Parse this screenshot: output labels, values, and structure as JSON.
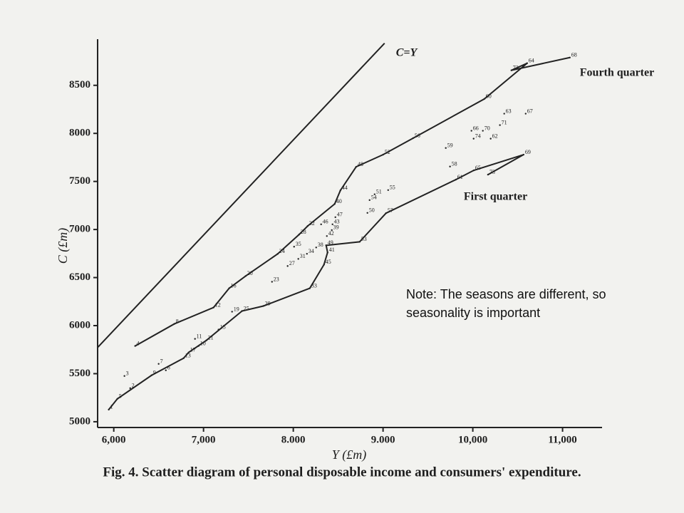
{
  "chart_data": {
    "type": "scatter",
    "caption": "Fig. 4. Scatter diagram of personal disposable income and consumers' expenditure.",
    "x_label": "Y (£m)",
    "y_label": "C (£m)",
    "xlim": [
      5820,
      11440
    ],
    "ylim": [
      4940,
      8980
    ],
    "xticks": [
      {
        "value": 6000,
        "label": "6,000"
      },
      {
        "value": 7000,
        "label": "7,000"
      },
      {
        "value": 8000,
        "label": "8.000"
      },
      {
        "value": 9000,
        "label": "9.000"
      },
      {
        "value": 10000,
        "label": "10,000"
      },
      {
        "value": 11000,
        "label": "11,000"
      }
    ],
    "yticks": [
      5000,
      5500,
      6000,
      6500,
      7000,
      7500,
      8000,
      8500
    ],
    "color": "#222222",
    "reference_line": {
      "label": "C=Y",
      "x": [
        5820,
        9017
      ],
      "y": [
        5773,
        8938
      ]
    },
    "series": [
      {
        "name": "Fourth quarter",
        "connected": true,
        "labels": [
          "4",
          "8",
          "12",
          "16",
          "20",
          "24",
          "28",
          "32",
          "40",
          "44",
          "48",
          "52",
          "56",
          "60",
          "64",
          "72",
          "68"
        ],
        "x": [
          6238,
          6675,
          7112,
          7286,
          7469,
          7826,
          8064,
          8160,
          8461,
          8525,
          8700,
          9001,
          9334,
          10128,
          10605,
          10430,
          11081
        ],
        "values": [
          5788,
          6018,
          6189,
          6389,
          6516,
          6746,
          6947,
          7036,
          7266,
          7407,
          7652,
          7779,
          7950,
          8358,
          8730,
          8656,
          8789
        ]
      },
      {
        "name": "First quarter",
        "connected": true,
        "labels": [
          "1",
          "5",
          "9",
          "13",
          "17",
          "21",
          "25",
          "29",
          "33",
          "45",
          "41",
          "49",
          "53",
          "57",
          "61",
          "65",
          "69",
          "73"
        ],
        "x": [
          5944,
          6040,
          6421,
          6778,
          6834,
          7032,
          7429,
          7667,
          8184,
          8342,
          8382,
          8366,
          8739,
          9033,
          9811,
          10010,
          10566,
          10169
        ],
        "values": [
          5126,
          5238,
          5483,
          5661,
          5721,
          5847,
          6152,
          6204,
          6389,
          6635,
          6761,
          6835,
          6872,
          7170,
          7519,
          7615,
          7779,
          7571
        ]
      },
      {
        "connected": false,
        "labels": [
          "63",
          "67",
          "71",
          "66",
          "70",
          "74",
          "62",
          "59",
          "58",
          "55",
          "51",
          "54",
          "50",
          "47",
          "46",
          "43",
          "39",
          "42",
          "38",
          "34",
          "35",
          "31",
          "27",
          "23",
          "19",
          "15",
          "11",
          "10",
          "7",
          "6",
          "3",
          "2"
        ],
        "x": [
          10350,
          10589,
          10302,
          9985,
          10112,
          10009,
          10199,
          9699,
          9746,
          9057,
          8906,
          8850,
          8826,
          8469,
          8310,
          8437,
          8429,
          8374,
          8255,
          8152,
          8009,
          8056,
          7937,
          7763,
          7318,
          7167,
          6905,
          6945,
          6500,
          6580,
          6119,
          6183
        ],
        "values": [
          8205,
          8205,
          8086,
          8027,
          8027,
          7945,
          7945,
          7848,
          7655,
          7410,
          7366,
          7306,
          7173,
          7128,
          7054,
          7054,
          6994,
          6932,
          6813,
          6747,
          6821,
          6694,
          6620,
          6456,
          6145,
          5959,
          5862,
          5788,
          5602,
          5535,
          5476,
          5349
        ]
      }
    ],
    "note": "Note: The seasons are different, so seasonality is important"
  }
}
